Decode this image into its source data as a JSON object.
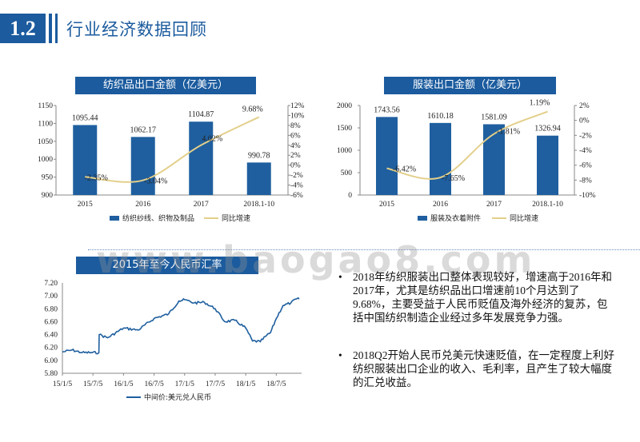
{
  "header": {
    "badge": "1.2",
    "title": "行业经济数据回顾"
  },
  "colors": {
    "accent": "#1b5b9e",
    "bar": "#1f5f9f",
    "line": "#e3cf8a",
    "fx_line": "#1f5f9f"
  },
  "watermark": "www.baogao8.com",
  "chart_data": [
    {
      "type": "bar",
      "title": "纺织品出口金额（亿美元）",
      "categories": [
        "2015",
        "2016",
        "2017",
        "2018.1-10"
      ],
      "series": [
        {
          "name": "纺织纱线、织物及制品",
          "type": "bar",
          "values": [
            1095.44,
            1062.17,
            1104.87,
            990.78
          ],
          "labels": [
            "1095.44",
            "1062.17",
            "1104.87",
            "990.78"
          ]
        },
        {
          "name": "同比增速",
          "type": "line",
          "axis": "right",
          "values": [
            -2.35,
            -3.04,
            4.02,
            9.68
          ],
          "labels": [
            "-2.35%",
            "-3.04%",
            "4.02%",
            "9.68%"
          ]
        }
      ],
      "ylim": [
        900,
        1150
      ],
      "yticks": [
        "900",
        "950",
        "1000",
        "1050",
        "1100",
        "1150"
      ],
      "y2lim": [
        -6,
        12
      ],
      "y2ticks": [
        "-6%",
        "-4%",
        "-2%",
        "0%",
        "2%",
        "4%",
        "6%",
        "8%",
        "10%",
        "12%"
      ],
      "legend": "bottom"
    },
    {
      "type": "bar",
      "title": "服装出口金额（亿美元）",
      "categories": [
        "2015",
        "2016",
        "2017",
        "2018.1-10"
      ],
      "series": [
        {
          "name": "服装及衣着附件",
          "type": "bar",
          "values": [
            1743.56,
            1610.18,
            1581.09,
            1326.94
          ],
          "labels": [
            "1743.56",
            "1610.18",
            "1581.09",
            "1326.94"
          ]
        },
        {
          "name": "同比增速",
          "type": "line",
          "axis": "right",
          "values": [
            -6.42,
            -7.65,
            -1.81,
            1.19
          ],
          "labels": [
            "-6.42%",
            "-7.65%",
            "-1.81%",
            "1.19%"
          ]
        }
      ],
      "ylim": [
        0,
        2000
      ],
      "yticks": [
        "0",
        "500",
        "1000",
        "1500",
        "2000"
      ],
      "y2lim": [
        -10,
        2
      ],
      "y2ticks": [
        "-10%",
        "-8%",
        "-6%",
        "-4%",
        "-2%",
        "0%",
        "2%"
      ],
      "legend": "bottom"
    },
    {
      "type": "line",
      "title": "2015年至今人民币汇率",
      "series": [
        {
          "name": "中间价:美元兑人民币",
          "x": [
            "15/1/5",
            "15/3/1",
            "15/5/1",
            "15/7/1",
            "15/8/10",
            "15/8/12",
            "15/10/1",
            "16/1/5",
            "16/4/1",
            "16/7/5",
            "16/10/1",
            "16/12/1",
            "17/1/5",
            "17/3/1",
            "17/5/1",
            "17/7/5",
            "17/9/1",
            "17/11/1",
            "18/1/5",
            "18/2/15",
            "18/4/1",
            "18/5/1",
            "18/6/1",
            "18/7/5",
            "18/8/15",
            "18/10/1",
            "18/11/1",
            "18/11/20"
          ],
          "values": [
            6.13,
            6.16,
            6.12,
            6.12,
            6.12,
            6.4,
            6.35,
            6.5,
            6.47,
            6.65,
            6.72,
            6.92,
            6.94,
            6.89,
            6.9,
            6.8,
            6.6,
            6.62,
            6.5,
            6.3,
            6.29,
            6.37,
            6.43,
            6.65,
            6.85,
            6.89,
            6.95,
            6.95
          ]
        }
      ],
      "xticks": [
        "15/1/5",
        "15/7/5",
        "16/1/5",
        "16/7/5",
        "17/1/5",
        "17/7/5",
        "18/1/5",
        "18/7/5"
      ],
      "ylim": [
        5.8,
        7.2
      ],
      "yticks": [
        "5.80",
        "6.00",
        "6.20",
        "6.40",
        "6.60",
        "6.80",
        "7.00",
        "7.20"
      ],
      "legend": "bottom"
    }
  ],
  "bullets": [
    "2018年纺织服装出口整体表现较好，增速高于2016年和2017年，尤其是纺织品出口增速前10个月达到了9.68%，主要受益于人民币贬值及海外经济的复苏，包括中国纺织制造企业经过多年发展竞争力强。",
    "2018Q2开始人民币兑美元快速贬值，在一定程度上利好纺织服装出口企业的收入、毛利率，且产生了较大幅度的汇兑收益。"
  ]
}
